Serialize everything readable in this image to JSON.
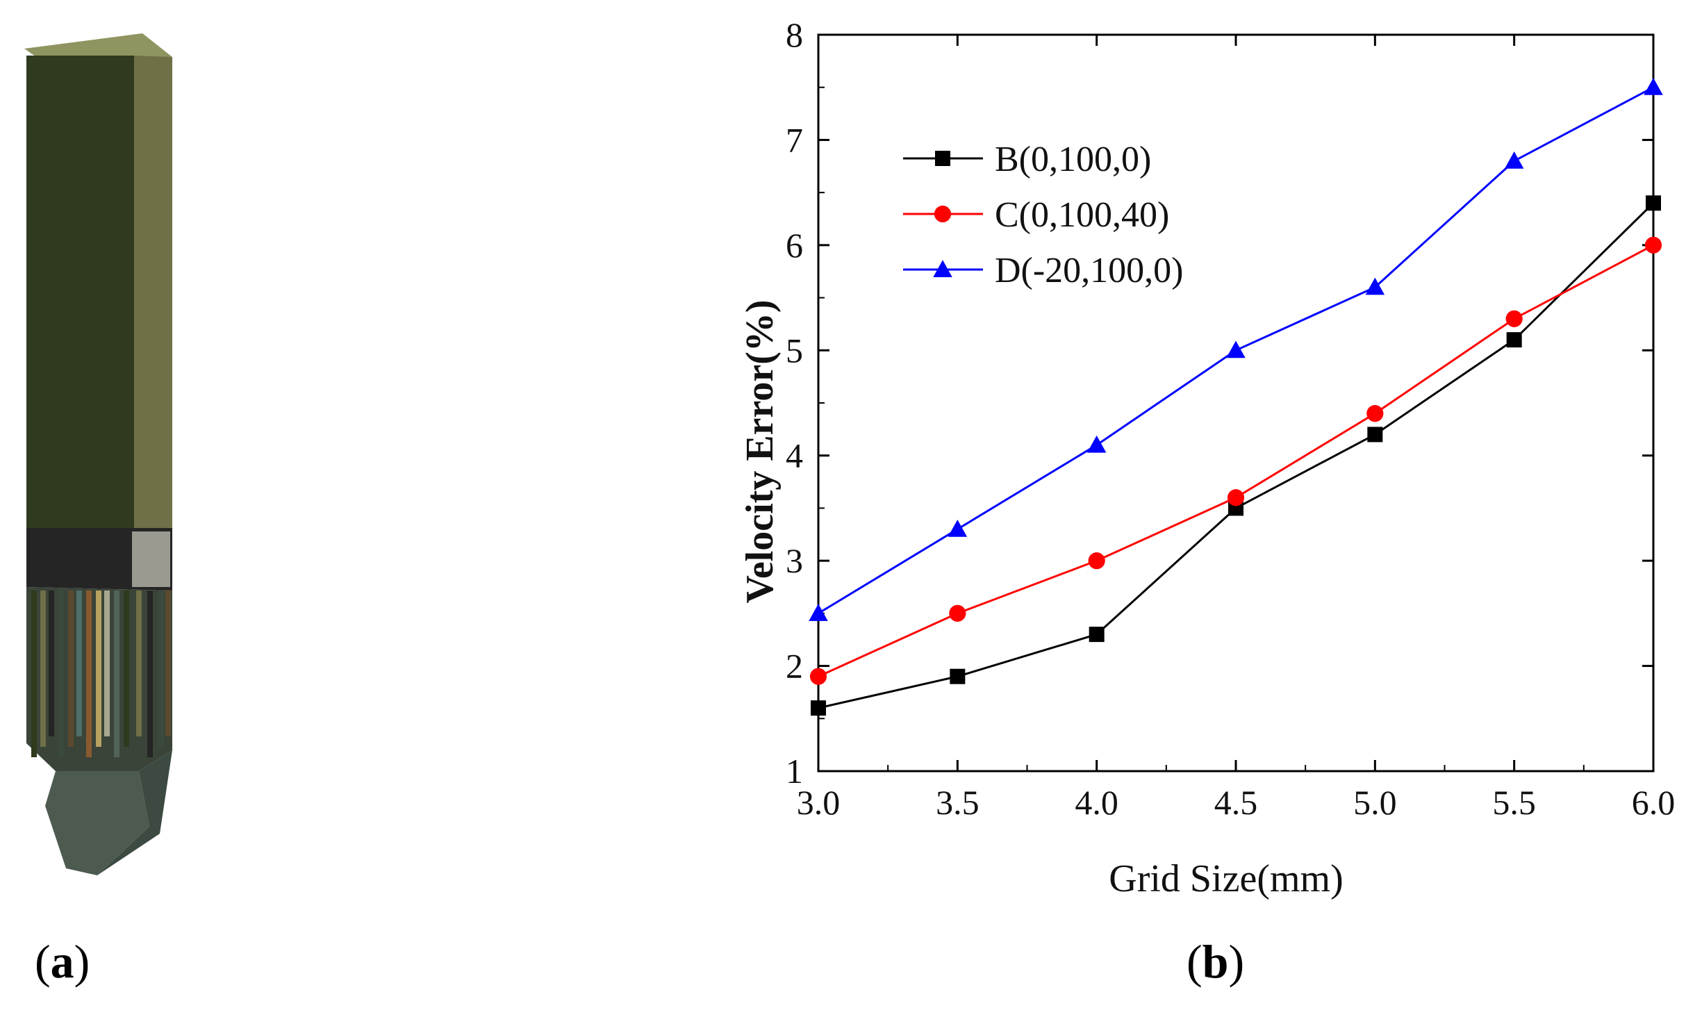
{
  "panels": {
    "a": {
      "label_open": "(",
      "label_letter": "a",
      "label_close": ")"
    },
    "b": {
      "label_open": "(",
      "label_letter": "b",
      "label_close": ")"
    }
  },
  "mesh_model": {
    "colors": [
      "#2f3a1e",
      "#6f7048",
      "#252525",
      "#3b4a3e",
      "#5c4a2f",
      "#4e6e6a",
      "#8a5a30",
      "#b8a060",
      "#a8a890",
      "#52645a"
    ]
  },
  "chart_data": {
    "type": "line",
    "xlabel": "Grid Size(mm)",
    "ylabel": "Velocity Error(%)",
    "xlim": [
      3.0,
      6.0
    ],
    "ylim": [
      1,
      8
    ],
    "x_ticks": [
      "3.0",
      "3.5",
      "4.0",
      "4.5",
      "5.0",
      "5.5",
      "6.0"
    ],
    "y_ticks": [
      "1",
      "2",
      "3",
      "4",
      "5",
      "6",
      "7",
      "8"
    ],
    "x": [
      3.0,
      3.5,
      4.0,
      4.5,
      5.0,
      5.5,
      6.0
    ],
    "legend_position": "top-left",
    "series": [
      {
        "name": "B(0,100,0)",
        "color": "#000000",
        "marker": "square",
        "values": [
          1.6,
          1.9,
          2.3,
          3.5,
          4.2,
          5.1,
          6.4
        ]
      },
      {
        "name": "C(0,100,40)",
        "color": "#ff0000",
        "marker": "circle",
        "values": [
          1.9,
          2.5,
          3.0,
          3.6,
          4.4,
          5.3,
          6.0
        ]
      },
      {
        "name": "D(-20,100,0)",
        "color": "#0000ff",
        "marker": "triangle",
        "values": [
          2.5,
          3.3,
          4.1,
          5.0,
          5.6,
          6.8,
          7.5
        ]
      }
    ]
  }
}
